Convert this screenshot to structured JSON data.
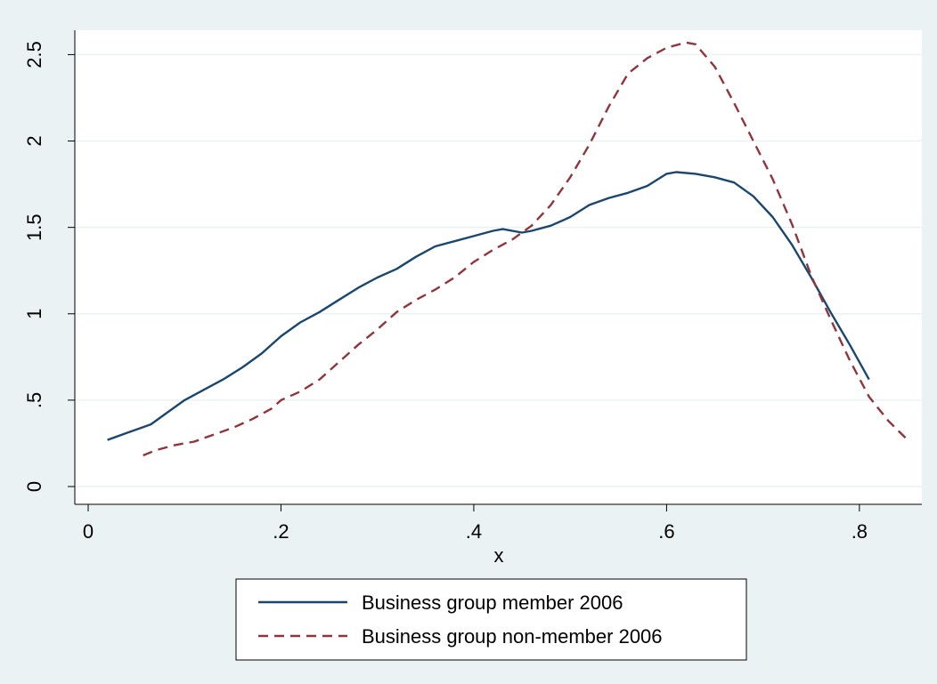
{
  "chart_data": {
    "type": "line",
    "title": "",
    "xlabel": "x",
    "ylabel": "",
    "xlim": [
      0,
      0.85
    ],
    "ylim": [
      0,
      2.6
    ],
    "x_ticks": [
      {
        "value": 0,
        "label": "0"
      },
      {
        "value": 0.2,
        "label": ".2"
      },
      {
        "value": 0.4,
        "label": ".4"
      },
      {
        "value": 0.6,
        "label": ".6"
      },
      {
        "value": 0.8,
        "label": ".8"
      }
    ],
    "y_ticks": [
      {
        "value": 0,
        "label": "0"
      },
      {
        "value": 0.5,
        "label": ".5"
      },
      {
        "value": 1,
        "label": "1"
      },
      {
        "value": 1.5,
        "label": "1.5"
      },
      {
        "value": 2,
        "label": "2"
      },
      {
        "value": 2.5,
        "label": "2.5"
      }
    ],
    "grid": true,
    "legend_position": "bottom",
    "background_color": "#eaf2f3",
    "plot_background_color": "#ffffff",
    "series": [
      {
        "name": "Business group member 2006",
        "color": "#1a476f",
        "dash": "solid",
        "points": [
          [
            0.02,
            0.27
          ],
          [
            0.04,
            0.31
          ],
          [
            0.065,
            0.36
          ],
          [
            0.08,
            0.42
          ],
          [
            0.1,
            0.5
          ],
          [
            0.12,
            0.56
          ],
          [
            0.14,
            0.62
          ],
          [
            0.16,
            0.69
          ],
          [
            0.18,
            0.77
          ],
          [
            0.2,
            0.87
          ],
          [
            0.22,
            0.95
          ],
          [
            0.24,
            1.01
          ],
          [
            0.26,
            1.08
          ],
          [
            0.28,
            1.15
          ],
          [
            0.3,
            1.21
          ],
          [
            0.32,
            1.26
          ],
          [
            0.34,
            1.33
          ],
          [
            0.36,
            1.39
          ],
          [
            0.38,
            1.42
          ],
          [
            0.4,
            1.45
          ],
          [
            0.42,
            1.48
          ],
          [
            0.43,
            1.49
          ],
          [
            0.45,
            1.47
          ],
          [
            0.46,
            1.48
          ],
          [
            0.48,
            1.51
          ],
          [
            0.5,
            1.56
          ],
          [
            0.52,
            1.63
          ],
          [
            0.54,
            1.67
          ],
          [
            0.56,
            1.7
          ],
          [
            0.58,
            1.74
          ],
          [
            0.6,
            1.81
          ],
          [
            0.61,
            1.82
          ],
          [
            0.63,
            1.81
          ],
          [
            0.65,
            1.79
          ],
          [
            0.67,
            1.76
          ],
          [
            0.69,
            1.68
          ],
          [
            0.71,
            1.56
          ],
          [
            0.73,
            1.4
          ],
          [
            0.75,
            1.21
          ],
          [
            0.77,
            1.01
          ],
          [
            0.79,
            0.82
          ],
          [
            0.81,
            0.62
          ]
        ]
      },
      {
        "name": "Business group non-member 2006",
        "color": "#90353b",
        "dash": "dashed",
        "points": [
          [
            0.057,
            0.18
          ],
          [
            0.07,
            0.21
          ],
          [
            0.09,
            0.24
          ],
          [
            0.11,
            0.26
          ],
          [
            0.13,
            0.3
          ],
          [
            0.15,
            0.34
          ],
          [
            0.17,
            0.39
          ],
          [
            0.19,
            0.45
          ],
          [
            0.2,
            0.5
          ],
          [
            0.22,
            0.55
          ],
          [
            0.24,
            0.62
          ],
          [
            0.26,
            0.72
          ],
          [
            0.28,
            0.82
          ],
          [
            0.3,
            0.91
          ],
          [
            0.32,
            1.01
          ],
          [
            0.34,
            1.08
          ],
          [
            0.36,
            1.14
          ],
          [
            0.38,
            1.21
          ],
          [
            0.4,
            1.3
          ],
          [
            0.42,
            1.37
          ],
          [
            0.44,
            1.43
          ],
          [
            0.46,
            1.51
          ],
          [
            0.48,
            1.63
          ],
          [
            0.5,
            1.79
          ],
          [
            0.52,
            1.98
          ],
          [
            0.54,
            2.2
          ],
          [
            0.56,
            2.39
          ],
          [
            0.58,
            2.48
          ],
          [
            0.6,
            2.54
          ],
          [
            0.62,
            2.57
          ],
          [
            0.63,
            2.56
          ],
          [
            0.65,
            2.43
          ],
          [
            0.67,
            2.22
          ],
          [
            0.69,
            2.0
          ],
          [
            0.71,
            1.78
          ],
          [
            0.73,
            1.52
          ],
          [
            0.75,
            1.22
          ],
          [
            0.77,
            0.97
          ],
          [
            0.79,
            0.73
          ],
          [
            0.81,
            0.52
          ],
          [
            0.83,
            0.38
          ],
          [
            0.85,
            0.27
          ]
        ]
      }
    ]
  }
}
